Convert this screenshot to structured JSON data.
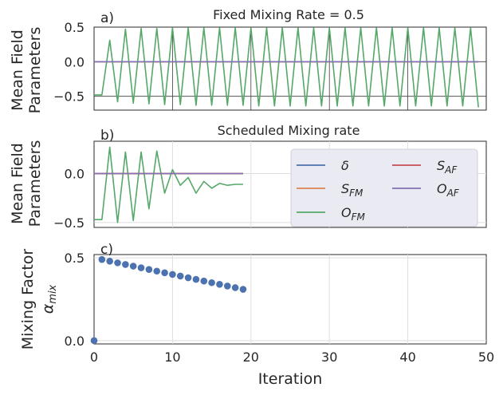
{
  "chart_data": [
    {
      "type": "line",
      "panel_label": "a)",
      "title": "Fixed Mixing Rate = 0.5",
      "ylabel": [
        "Mean Field",
        "Parameters"
      ],
      "xlim": [
        0,
        50
      ],
      "ylim": [
        -0.7,
        0.5
      ],
      "yticks": [
        0.5,
        0.0,
        -0.5
      ],
      "ytick_labels": [
        "0.5",
        "0.0",
        "−0.5"
      ],
      "x": [
        0,
        1,
        2,
        3,
        4,
        5,
        6,
        7,
        8,
        9,
        10,
        11,
        12,
        13,
        14,
        15,
        16,
        17,
        18,
        19,
        20,
        21,
        22,
        23,
        24,
        25,
        26,
        27,
        28,
        29,
        30,
        31,
        32,
        33,
        34,
        35,
        36,
        37,
        38,
        39,
        40,
        41,
        42,
        43,
        44,
        45,
        46,
        47,
        48,
        49
      ],
      "series": [
        {
          "name": "δ",
          "color": "#4c72b0",
          "values": [
            0,
            0,
            0,
            0,
            0,
            0,
            0,
            0,
            0,
            0,
            0,
            0,
            0,
            0,
            0,
            0,
            0,
            0,
            0,
            0,
            0,
            0,
            0,
            0,
            0,
            0,
            0,
            0,
            0,
            0,
            0,
            0,
            0,
            0,
            0,
            0,
            0,
            0,
            0,
            0,
            0,
            0,
            0,
            0,
            0,
            0,
            0,
            0,
            0,
            0
          ]
        },
        {
          "name": "S_FM",
          "color": "#dd8452",
          "values": [
            0,
            0,
            0,
            0,
            0,
            0,
            0,
            0,
            0,
            0,
            0,
            0,
            0,
            0,
            0,
            0,
            0,
            0,
            0,
            0,
            0,
            0,
            0,
            0,
            0,
            0,
            0,
            0,
            0,
            0,
            0,
            0,
            0,
            0,
            0,
            0,
            0,
            0,
            0,
            0,
            0,
            0,
            0,
            0,
            0,
            0,
            0,
            0,
            0,
            0
          ]
        },
        {
          "name": "S_AF",
          "color": "#c44e52",
          "values": [
            0,
            0,
            0,
            0,
            0,
            0,
            0,
            0,
            0,
            0,
            0,
            0,
            0,
            0,
            0,
            0,
            0,
            0,
            0,
            0,
            0,
            0,
            0,
            0,
            0,
            0,
            0,
            0,
            0,
            0,
            0,
            0,
            0,
            0,
            0,
            0,
            0,
            0,
            0,
            0,
            0,
            0,
            0,
            0,
            0,
            0,
            0,
            0,
            0,
            0
          ]
        },
        {
          "name": "O_AF",
          "color": "#8172b3",
          "values": [
            0,
            0,
            0,
            0,
            0,
            0,
            0,
            0,
            0,
            0,
            0,
            0,
            0,
            0,
            0,
            0,
            0,
            0,
            0,
            0,
            0,
            0,
            0,
            0,
            0,
            0,
            0,
            0,
            0,
            0,
            0,
            0,
            0,
            0,
            0,
            0,
            0,
            0,
            0,
            0,
            0,
            0,
            0,
            0,
            0,
            0,
            0,
            0,
            0,
            0
          ]
        },
        {
          "name": "O_FM",
          "color": "#55a868",
          "values": [
            -0.48,
            -0.48,
            0.31,
            -0.58,
            0.47,
            -0.6,
            0.48,
            -0.61,
            0.48,
            -0.62,
            0.49,
            -0.62,
            0.49,
            -0.63,
            0.49,
            -0.63,
            0.49,
            -0.63,
            0.49,
            -0.63,
            0.49,
            -0.64,
            0.49,
            -0.64,
            0.49,
            -0.64,
            0.49,
            -0.64,
            0.49,
            -0.64,
            0.49,
            -0.64,
            0.49,
            -0.64,
            0.49,
            -0.64,
            0.49,
            -0.64,
            0.49,
            -0.64,
            0.49,
            -0.64,
            0.49,
            -0.64,
            0.49,
            -0.64,
            0.49,
            -0.64,
            0.49,
            -0.66
          ]
        }
      ]
    },
    {
      "type": "line",
      "panel_label": "b)",
      "title": "Scheduled Mixing rate",
      "ylabel": [
        "Mean Field",
        "Parameters"
      ],
      "xlim": [
        0,
        50
      ],
      "ylim": [
        -0.55,
        0.33
      ],
      "yticks": [
        0.0,
        -0.5
      ],
      "ytick_labels": [
        "0.0",
        "−0.5"
      ],
      "x": [
        0,
        1,
        2,
        3,
        4,
        5,
        6,
        7,
        8,
        9,
        10,
        11,
        12,
        13,
        14,
        15,
        16,
        17,
        18,
        19
      ],
      "series": [
        {
          "name": "δ",
          "color": "#4c72b0",
          "values": [
            0,
            0,
            0,
            0,
            0,
            0,
            0,
            0,
            0,
            0,
            0,
            0,
            0,
            0,
            0,
            0,
            0,
            0,
            0,
            0
          ]
        },
        {
          "name": "S_FM",
          "color": "#dd8452",
          "values": [
            0,
            0,
            0,
            0,
            0,
            0,
            0,
            0,
            0,
            0,
            0,
            0,
            0,
            0,
            0,
            0,
            0,
            0,
            0,
            0
          ]
        },
        {
          "name": "S_AF",
          "color": "#c44e52",
          "values": [
            0,
            0,
            0,
            0,
            0,
            0,
            0,
            0,
            0,
            0,
            0,
            0,
            0,
            0,
            0,
            0,
            0,
            0,
            0,
            0
          ]
        },
        {
          "name": "O_AF",
          "color": "#8172b3",
          "values": [
            0,
            0,
            0,
            0,
            0,
            0,
            0,
            0,
            0,
            0,
            0,
            0,
            0,
            0,
            0,
            0,
            0,
            0,
            0,
            0
          ]
        },
        {
          "name": "O_FM",
          "color": "#55a868",
          "values": [
            -0.47,
            -0.47,
            0.27,
            -0.5,
            0.22,
            -0.48,
            0.22,
            -0.36,
            0.23,
            -0.2,
            0.04,
            -0.12,
            -0.04,
            -0.2,
            -0.08,
            -0.15,
            -0.1,
            -0.12,
            -0.11,
            -0.11
          ]
        }
      ],
      "legend": {
        "placement": "right",
        "columns": 2,
        "entries": [
          {
            "base": "δ",
            "sub": "",
            "color": "#4c72b0"
          },
          {
            "base": "S",
            "sub": "AF",
            "color": "#c44e52"
          },
          {
            "base": "S",
            "sub": "FM",
            "color": "#dd8452"
          },
          {
            "base": "O",
            "sub": "AF",
            "color": "#8172b3"
          },
          {
            "base": "O",
            "sub": "FM",
            "color": "#55a868"
          }
        ]
      }
    },
    {
      "type": "scatter",
      "panel_label": "c)",
      "ylabel": [
        "Mixing Factor"
      ],
      "ylabel_symbol": "α",
      "ylabel_symbol_sub": "mix",
      "xlabel": "Iteration",
      "xlim": [
        0,
        50
      ],
      "ylim": [
        -0.02,
        0.52
      ],
      "xticks": [
        0,
        10,
        20,
        30,
        40,
        50
      ],
      "xtick_labels": [
        "0",
        "10",
        "20",
        "30",
        "40",
        "50"
      ],
      "yticks": [
        0.5,
        0.0
      ],
      "ytick_labels": [
        "0.5",
        "0.0"
      ],
      "x": [
        0,
        1,
        2,
        3,
        4,
        5,
        6,
        7,
        8,
        9,
        10,
        11,
        12,
        13,
        14,
        15,
        16,
        17,
        18,
        19
      ],
      "series": [
        {
          "name": "mixing factor",
          "color": "#4c72b0",
          "values": [
            0.0,
            0.49,
            0.48,
            0.47,
            0.46,
            0.45,
            0.44,
            0.43,
            0.42,
            0.41,
            0.4,
            0.39,
            0.38,
            0.37,
            0.36,
            0.35,
            0.34,
            0.33,
            0.32,
            0.31
          ]
        }
      ]
    }
  ]
}
